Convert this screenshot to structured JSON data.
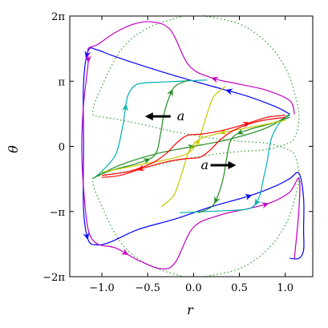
{
  "chart_data": {
    "type": "line",
    "title": "",
    "xlabel": "r",
    "ylabel": "θ",
    "xlim": [
      -1.35,
      1.3
    ],
    "ylim": [
      -6.2832,
      6.2832
    ],
    "grid": false,
    "x_ticks": [
      {
        "value": -1.0,
        "label": "−1.0"
      },
      {
        "value": -0.5,
        "label": "−0.5"
      },
      {
        "value": 0.0,
        "label": "0.0"
      },
      {
        "value": 0.5,
        "label": "0.5"
      },
      {
        "value": 1.0,
        "label": "1.0"
      }
    ],
    "y_ticks": [
      {
        "value": -6.2832,
        "label": "−2π"
      },
      {
        "value": -3.1416,
        "label": "−π"
      },
      {
        "value": 0,
        "label": "0"
      },
      {
        "value": 3.1416,
        "label": "π"
      },
      {
        "value": 6.2832,
        "label": "2π"
      }
    ],
    "annotations": [
      {
        "text": "a",
        "x": -0.18,
        "y": 1.25,
        "arrow": "left"
      },
      {
        "text": "a",
        "x": 0.08,
        "y": -1.1,
        "arrow": "right"
      }
    ],
    "series": [
      {
        "color": "#2ca02c",
        "style": "dotted",
        "arrows": [],
        "x": [
          0.1,
          0.5,
          0.8,
          1.0,
          1.1,
          1.15,
          1.1,
          1.0,
          0.8,
          0.5,
          0.2,
          -0.2,
          -0.6,
          -0.9,
          -1.05,
          -1.1,
          -1.05,
          -0.8,
          -0.5,
          -0.1
        ],
        "y": [
          6.3,
          5.9,
          5.0,
          3.8,
          2.6,
          1.4,
          0.4,
          0.1,
          -0.15,
          -0.25,
          -0.4,
          -0.7,
          -1.1,
          -1.35,
          -1.45,
          -1.6,
          -2.4,
          -4.6,
          -5.7,
          -6.3
        ]
      },
      {
        "color": "#2ca02c",
        "style": "dotted",
        "arrows": [],
        "x": [
          -0.1,
          -0.5,
          -0.8,
          -1.05,
          -1.1,
          -1.05,
          -0.9,
          -0.6,
          -0.2,
          0.2,
          0.5,
          0.8,
          1.0,
          1.1,
          1.15,
          1.1,
          1.0,
          0.8,
          0.5,
          0.1
        ],
        "y": [
          6.3,
          5.7,
          4.6,
          2.4,
          1.6,
          1.45,
          1.35,
          1.1,
          0.7,
          0.4,
          0.25,
          0.15,
          -0.1,
          -0.4,
          -1.4,
          -2.6,
          -3.8,
          -5.0,
          -5.9,
          -6.3
        ]
      },
      {
        "color": "#0000ff",
        "style": "solid",
        "arrows": [
          0.09,
          0.3,
          0.55,
          0.79
        ],
        "x": [
          1.05,
          0.9,
          0.6,
          0.2,
          -0.2,
          -0.6,
          -0.9,
          -1.05,
          -1.15,
          -1.2,
          -1.2,
          -1.2,
          -1.15,
          -1.05,
          -0.9,
          -0.6,
          -0.2,
          0.2,
          0.6,
          0.9,
          1.05,
          1.15,
          1.2,
          1.2,
          1.2,
          1.15,
          1.05
        ],
        "y": [
          1.55,
          1.9,
          2.4,
          2.9,
          3.4,
          3.95,
          4.4,
          4.65,
          4.6,
          3.0,
          0.0,
          -3.0,
          -4.5,
          -4.75,
          -4.6,
          -4.0,
          -3.5,
          -2.9,
          -2.4,
          -1.9,
          -1.55,
          -1.3,
          -2.5,
          -4.0,
          -5.0,
          -5.4,
          -5.4
        ]
      },
      {
        "color": "#c000c0",
        "style": "solid",
        "arrows": [
          0.12,
          0.34,
          0.62,
          0.84
        ],
        "x": [
          1.1,
          1.05,
          0.8,
          0.5,
          0.2,
          -0.05,
          -0.25,
          -0.45,
          -0.65,
          -0.85,
          -1.05,
          -1.15,
          -1.15,
          -1.2,
          -1.22,
          -1.2,
          -1.15,
          -1.05,
          -0.85,
          -0.6,
          -0.35,
          -0.2,
          0.0,
          0.3,
          0.6,
          0.85,
          1.05,
          1.15,
          1.15,
          1.1
        ],
        "y": [
          1.55,
          2.2,
          2.7,
          3.0,
          3.3,
          3.9,
          5.6,
          6.0,
          5.9,
          5.5,
          4.9,
          4.7,
          4.0,
          2.0,
          0.0,
          -2.0,
          -4.0,
          -4.7,
          -4.9,
          -5.5,
          -5.9,
          -5.6,
          -3.9,
          -3.3,
          -3.0,
          -2.7,
          -2.2,
          -1.55,
          -3.0,
          -5.4
        ]
      },
      {
        "color": "#00b0b0",
        "style": "solid",
        "arrows": [
          0.45
        ],
        "x": [
          -1.08,
          -1.0,
          -0.85,
          -0.78,
          -0.75,
          -0.72,
          -0.65,
          -0.55,
          -0.35,
          -0.1,
          0.15
        ],
        "y": [
          -1.5,
          -1.2,
          -0.4,
          0.8,
          1.6,
          2.4,
          2.9,
          3.05,
          3.1,
          3.15,
          3.2
        ]
      },
      {
        "color": "#00b0b0",
        "style": "solid",
        "arrows": [
          0.55
        ],
        "x": [
          1.05,
          0.95,
          0.85,
          0.8,
          0.76,
          0.72,
          0.65,
          0.55,
          0.35,
          0.1,
          -0.15
        ],
        "y": [
          1.5,
          1.2,
          0.4,
          -0.8,
          -1.6,
          -2.4,
          -2.9,
          -3.05,
          -3.1,
          -3.15,
          -3.2
        ]
      },
      {
        "color": "#228b22",
        "style": "solid",
        "arrows": [
          0.35,
          0.85
        ],
        "x": [
          -1.05,
          -0.85,
          -0.6,
          -0.42,
          -0.36,
          -0.33,
          -0.28,
          -0.2,
          -0.05
        ],
        "y": [
          -1.4,
          -1.1,
          -0.8,
          -0.4,
          0.6,
          1.4,
          2.2,
          2.9,
          3.2
        ]
      },
      {
        "color": "#228b22",
        "style": "solid",
        "arrows": [
          0.35,
          0.85
        ],
        "x": [
          1.05,
          0.85,
          0.6,
          0.42,
          0.36,
          0.33,
          0.28,
          0.2,
          0.05
        ],
        "y": [
          1.4,
          1.1,
          0.8,
          0.4,
          -0.6,
          -1.4,
          -2.2,
          -2.9,
          -3.2
        ]
      },
      {
        "color": "#228b22",
        "style": "solid",
        "arrows": [
          0.5
        ],
        "x": [
          -1.1,
          -0.8,
          -0.4,
          0.0,
          0.4,
          0.8,
          1.05
        ],
        "y": [
          -1.55,
          -0.9,
          -0.35,
          0.0,
          0.35,
          0.9,
          1.55
        ]
      },
      {
        "color": "#c8c800",
        "style": "solid",
        "arrows": [
          0.62
        ],
        "x": [
          -1.0,
          -0.6,
          -0.25,
          -0.05,
          0.05,
          0.1,
          0.15,
          0.22,
          0.35
        ],
        "y": [
          -1.25,
          -0.9,
          -0.6,
          -0.3,
          0.25,
          0.9,
          1.6,
          2.4,
          2.9
        ]
      },
      {
        "color": "#c8c800",
        "style": "solid",
        "arrows": [
          0.38
        ],
        "x": [
          1.0,
          0.6,
          0.25,
          0.05,
          -0.05,
          -0.1,
          -0.15,
          -0.22,
          -0.35
        ],
        "y": [
          1.25,
          0.9,
          0.6,
          0.3,
          -0.25,
          -0.9,
          -1.6,
          -2.4,
          -2.9
        ]
      },
      {
        "color": "#ff0000",
        "style": "solid",
        "arrows": [
          0.8
        ],
        "x": [
          -1.0,
          -0.7,
          -0.45,
          -0.3,
          -0.2,
          -0.12,
          -0.05,
          0.1,
          0.3,
          0.55,
          0.8,
          1.0
        ],
        "y": [
          -1.4,
          -1.2,
          -0.8,
          -0.35,
          0.1,
          0.4,
          0.55,
          0.6,
          0.75,
          1.05,
          1.4,
          1.5
        ]
      },
      {
        "color": "#ff0000",
        "style": "solid",
        "arrows": [
          0.8
        ],
        "x": [
          1.0,
          0.7,
          0.45,
          0.3,
          0.2,
          0.12,
          0.05,
          -0.1,
          -0.3,
          -0.55,
          -0.8,
          -1.0
        ],
        "y": [
          1.4,
          1.2,
          0.8,
          0.35,
          -0.1,
          -0.4,
          -0.55,
          -0.6,
          -0.75,
          -1.05,
          -1.4,
          -1.5
        ]
      }
    ]
  }
}
